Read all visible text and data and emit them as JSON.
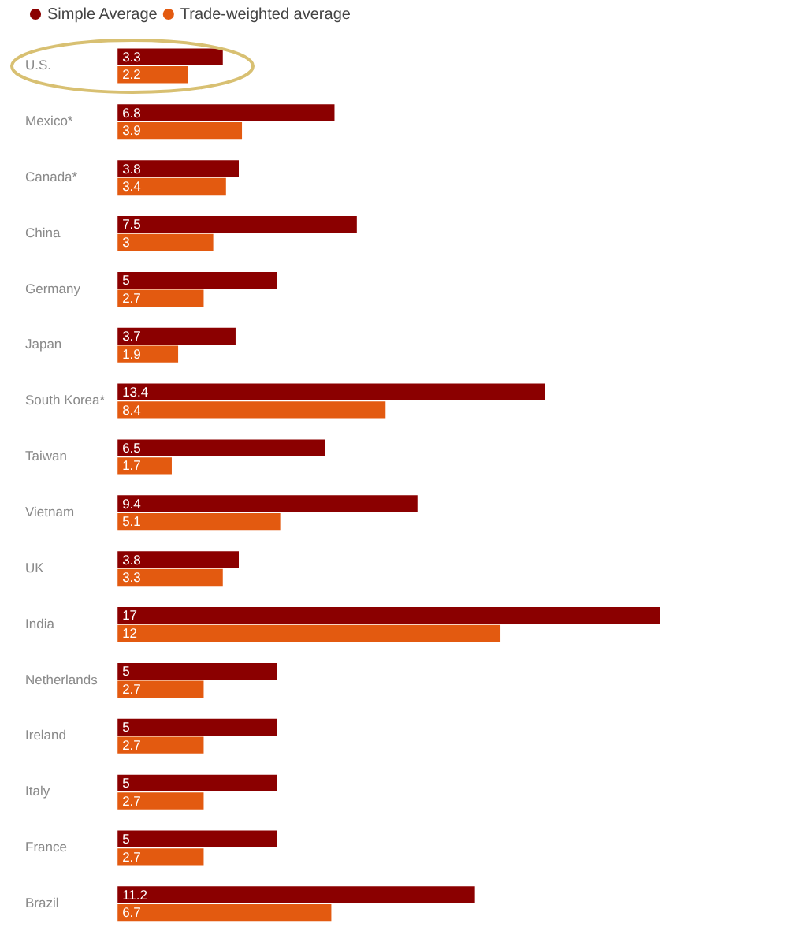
{
  "chart_data": {
    "type": "bar",
    "orientation": "horizontal",
    "categories": [
      "U.S.",
      "Mexico*",
      "Canada*",
      "China",
      "Germany",
      "Japan",
      "South Korea*",
      "Taiwan",
      "Vietnam",
      "UK",
      "India",
      "Netherlands",
      "Ireland",
      "Italy",
      "France",
      "Brazil"
    ],
    "series": [
      {
        "name": "Simple Average",
        "color": "#8b0000",
        "values": [
          3.3,
          6.8,
          3.8,
          7.5,
          5,
          3.7,
          13.4,
          6.5,
          9.4,
          3.8,
          17,
          5,
          5,
          5,
          5,
          11.2
        ]
      },
      {
        "name": "Trade-weighted average",
        "color": "#e35a10",
        "values": [
          2.2,
          3.9,
          3.4,
          3,
          2.7,
          1.9,
          8.4,
          1.7,
          5.1,
          3.3,
          12,
          2.7,
          2.7,
          2.7,
          2.7,
          6.7
        ]
      }
    ],
    "data_labels": true,
    "legend": "top left",
    "grid": false,
    "tick_labels": "y"
  }
}
